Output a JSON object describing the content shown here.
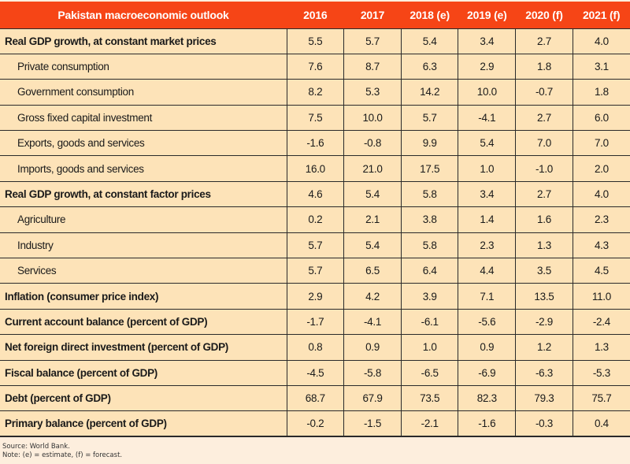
{
  "table": {
    "title": "Pakistan macroeconomic outlook",
    "columns": [
      "2016",
      "2017",
      "2018 (e)",
      "2019 (e)",
      "2020 (f)",
      "2021 (f)"
    ],
    "rows": [
      {
        "label": "Real GDP growth, at constant market prices",
        "level": "main",
        "values": [
          "5.5",
          "5.7",
          "5.4",
          "3.4",
          "2.7",
          "4.0"
        ]
      },
      {
        "label": "Private consumption",
        "level": "sub",
        "values": [
          "7.6",
          "8.7",
          "6.3",
          "2.9",
          "1.8",
          "3.1"
        ]
      },
      {
        "label": "Government consumption",
        "level": "sub",
        "values": [
          "8.2",
          "5.3",
          "14.2",
          "10.0",
          "-0.7",
          "1.8"
        ]
      },
      {
        "label": "Gross fixed capital investment",
        "level": "sub",
        "values": [
          "7.5",
          "10.0",
          "5.7",
          "-4.1",
          "2.7",
          "6.0"
        ]
      },
      {
        "label": "Exports, goods and services",
        "level": "sub",
        "values": [
          "-1.6",
          "-0.8",
          "9.9",
          "5.4",
          "7.0",
          "7.0"
        ]
      },
      {
        "label": "Imports, goods and services",
        "level": "sub",
        "values": [
          "16.0",
          "21.0",
          "17.5",
          "1.0",
          "-1.0",
          "2.0"
        ]
      },
      {
        "label": "Real GDP growth, at constant factor prices",
        "level": "main",
        "values": [
          "4.6",
          "5.4",
          "5.8",
          "3.4",
          "2.7",
          "4.0"
        ]
      },
      {
        "label": "Agriculture",
        "level": "sub",
        "values": [
          "0.2",
          "2.1",
          "3.8",
          "1.4",
          "1.6",
          "2.3"
        ]
      },
      {
        "label": "Industry",
        "level": "sub",
        "values": [
          "5.7",
          "5.4",
          "5.8",
          "2.3",
          "1.3",
          "4.3"
        ]
      },
      {
        "label": "Services",
        "level": "sub",
        "values": [
          "5.7",
          "6.5",
          "6.4",
          "4.4",
          "3.5",
          "4.5"
        ]
      },
      {
        "label": "Inflation (consumer price index)",
        "level": "main",
        "values": [
          "2.9",
          "4.2",
          "3.9",
          "7.1",
          "13.5",
          "11.0"
        ]
      },
      {
        "label": "Current account balance (percent of GDP)",
        "level": "main",
        "values": [
          "-1.7",
          "-4.1",
          "-6.1",
          "-5.6",
          "-2.9",
          "-2.4"
        ]
      },
      {
        "label": "Net foreign direct investment (percent of GDP)",
        "level": "main",
        "values": [
          "0.8",
          "0.9",
          "1.0",
          "0.9",
          "1.2",
          "1.3"
        ]
      },
      {
        "label": "Fiscal balance (percent of GDP)",
        "level": "main",
        "values": [
          "-4.5",
          "-5.8",
          "-6.5",
          "-6.9",
          "-6.3",
          "-5.3"
        ]
      },
      {
        "label": "Debt (percent of GDP)",
        "level": "main",
        "values": [
          "68.7",
          "67.9",
          "73.5",
          "82.3",
          "79.3",
          "75.7"
        ]
      },
      {
        "label": "Primary balance (percent of GDP)",
        "level": "main",
        "values": [
          "-0.2",
          "-1.5",
          "-2.1",
          "-1.6",
          "-0.3",
          "0.4"
        ]
      }
    ]
  },
  "notes": {
    "source": "Source: World Bank.",
    "note": "Note: (e) =  estimate, (f) = forecast."
  },
  "colors": {
    "header_bg": "#f64516",
    "header_text": "#ffffff",
    "cell_bg": "#fde3b8",
    "page_bg": "#fdeedd",
    "grid": "#2a2a2a"
  }
}
